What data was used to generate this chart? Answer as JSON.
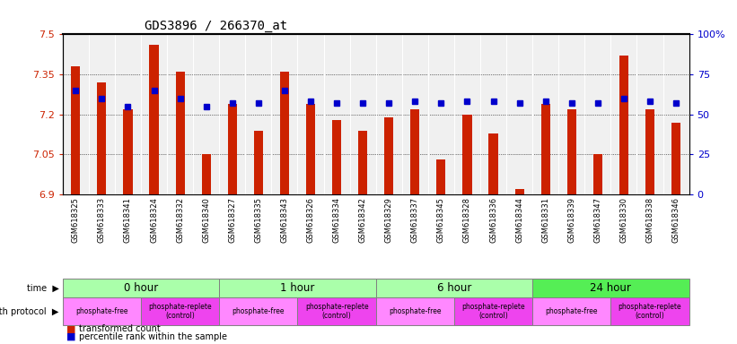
{
  "title": "GDS3896 / 266370_at",
  "samples": [
    "GSM618325",
    "GSM618333",
    "GSM618341",
    "GSM618324",
    "GSM618332",
    "GSM618340",
    "GSM618327",
    "GSM618335",
    "GSM618343",
    "GSM618326",
    "GSM618334",
    "GSM618342",
    "GSM618329",
    "GSM618337",
    "GSM618345",
    "GSM618328",
    "GSM618336",
    "GSM618344",
    "GSM618331",
    "GSM618339",
    "GSM618347",
    "GSM618330",
    "GSM618338",
    "GSM618346"
  ],
  "bar_values": [
    7.38,
    7.32,
    7.22,
    7.46,
    7.36,
    7.05,
    7.24,
    7.14,
    7.36,
    7.24,
    7.18,
    7.14,
    7.19,
    7.22,
    7.03,
    7.2,
    7.13,
    6.92,
    7.24,
    7.22,
    7.05,
    7.42,
    7.22,
    7.17
  ],
  "dot_values": [
    65,
    60,
    55,
    65,
    60,
    55,
    57,
    57,
    65,
    58,
    57,
    57,
    57,
    58,
    57,
    58,
    58,
    57,
    58,
    57,
    57,
    60,
    58,
    57
  ],
  "ymin": 6.9,
  "ymax": 7.5,
  "yticks": [
    6.9,
    7.05,
    7.2,
    7.35,
    7.5
  ],
  "ytick_labels": [
    "6.9",
    "7.05",
    "7.2",
    "7.35",
    "7.5"
  ],
  "y2min": 0,
  "y2max": 100,
  "y2ticks": [
    0,
    25,
    50,
    75,
    100
  ],
  "y2tick_labels": [
    "0",
    "25",
    "50",
    "75",
    "100%"
  ],
  "bar_color": "#cc2200",
  "dot_color": "#0000cc",
  "time_labels": [
    "0 hour",
    "1 hour",
    "6 hour",
    "24 hour"
  ],
  "time_colors": [
    "#aaffaa",
    "#aaffaa",
    "#aaffaa",
    "#55ee55"
  ],
  "time_edges": [
    0,
    6,
    12,
    18,
    24
  ],
  "proto_labels": [
    "phosphate-free",
    "phosphate-replete\n(control)",
    "phosphate-free",
    "phosphate-replete\n(control)",
    "phosphate-free",
    "phosphate-replete\n(control)",
    "phosphate-free",
    "phosphate-replete\n(control)"
  ],
  "proto_colors": [
    "#ff88ff",
    "#ee44ee",
    "#ff88ff",
    "#ee44ee",
    "#ff88ff",
    "#ee44ee",
    "#ff88ff",
    "#ee44ee"
  ],
  "proto_edges": [
    0,
    3,
    6,
    9,
    12,
    15,
    18,
    21,
    24
  ],
  "background_color": "#ffffff"
}
